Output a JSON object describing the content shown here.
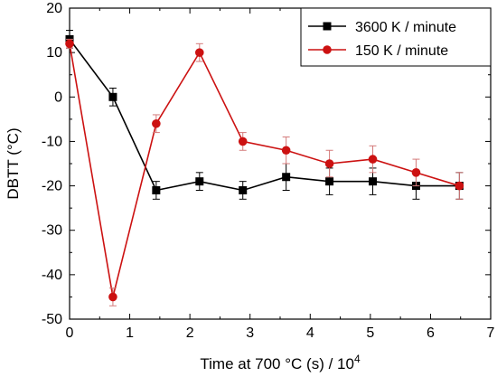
{
  "chart_data": {
    "type": "line",
    "xlabel": "Time at 700 °C (s) / 10",
    "xlabel_superscript": "4",
    "ylabel": "DBTT (°C)",
    "xlim": [
      0,
      7
    ],
    "ylim": [
      -50,
      20
    ],
    "x_ticks": [
      "0",
      "1",
      "2",
      "3",
      "4",
      "5",
      "6",
      "7"
    ],
    "y_ticks": [
      "-50",
      "-40",
      "-30",
      "-20",
      "-10",
      "0",
      "10",
      "20"
    ],
    "grid": false,
    "legend_position": "top-right",
    "series": [
      {
        "name": "3600 K / minute",
        "color": "#000000",
        "marker": "square",
        "x": [
          0,
          0.72,
          1.44,
          2.16,
          2.88,
          3.6,
          4.32,
          5.04,
          5.76,
          6.48
        ],
        "y": [
          13,
          0,
          -21,
          -19,
          -21,
          -18,
          -19,
          -19,
          -20,
          -20
        ],
        "err": [
          2,
          2,
          2,
          2,
          2,
          3,
          3,
          3,
          3,
          3
        ]
      },
      {
        "name": "150 K / minute",
        "color": "#cc1111",
        "marker": "circle",
        "x": [
          0,
          0.72,
          1.44,
          2.16,
          2.88,
          3.6,
          4.32,
          5.04,
          5.76,
          6.48
        ],
        "y": [
          12,
          -45,
          -6,
          10,
          -10,
          -12,
          -15,
          -14,
          -17,
          -20
        ],
        "err": [
          1,
          2,
          2,
          2,
          2,
          3,
          3,
          3,
          3,
          3
        ]
      }
    ]
  }
}
